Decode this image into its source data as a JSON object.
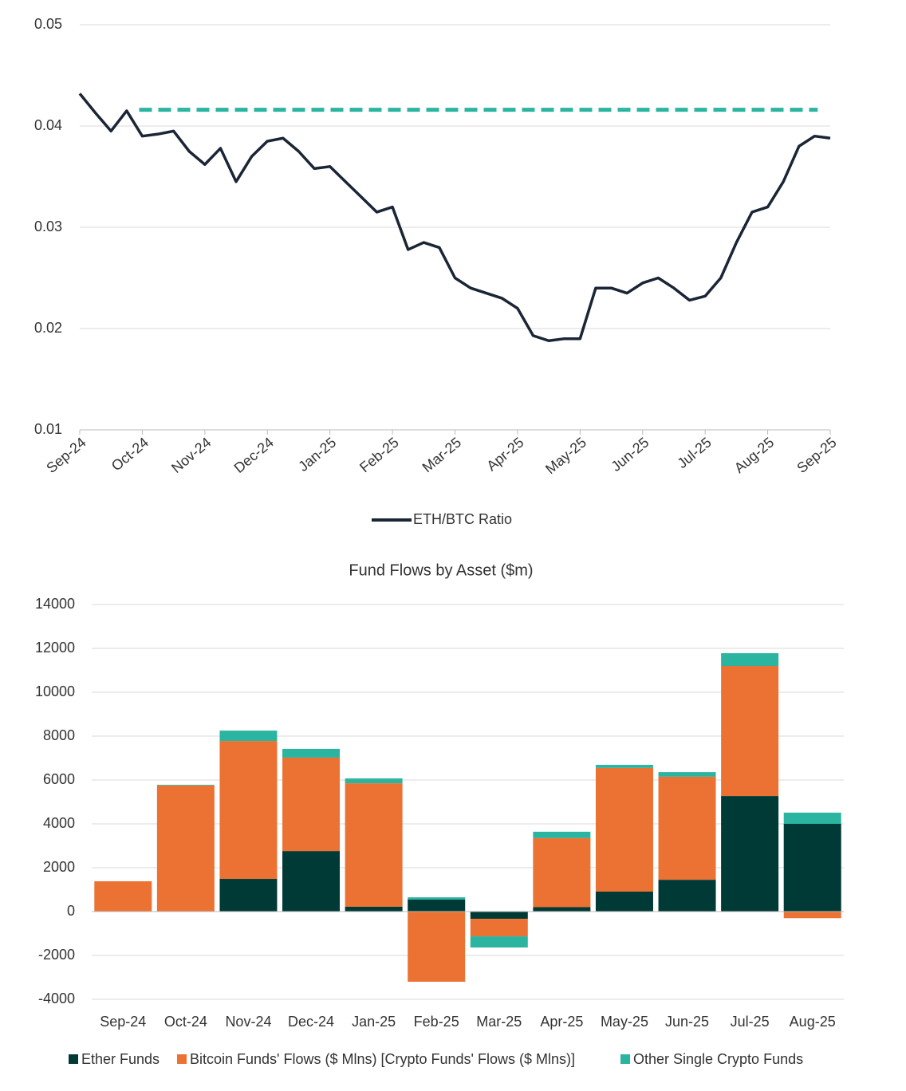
{
  "chart_data": [
    {
      "type": "line",
      "x": [
        0,
        0.25,
        0.5,
        0.75,
        1,
        1.25,
        1.5,
        1.75,
        2,
        2.25,
        2.5,
        2.75,
        3,
        3.25,
        3.5,
        3.75,
        4,
        4.25,
        4.5,
        4.75,
        5,
        5.25,
        5.5,
        5.75,
        6,
        6.25,
        6.5,
        6.75,
        7,
        7.25,
        7.5,
        7.75,
        8,
        8.25,
        8.5,
        8.75,
        9,
        9.25,
        9.5,
        9.75,
        10,
        10.25,
        10.5,
        10.75,
        11,
        11.25,
        11.5,
        11.75,
        12
      ],
      "series": [
        {
          "name": "ETH/BTC Ratio",
          "color": "#1a2535",
          "values": [
            0.0432,
            0.0413,
            0.0395,
            0.0415,
            0.039,
            0.0392,
            0.0395,
            0.0375,
            0.0362,
            0.0378,
            0.0345,
            0.037,
            0.0385,
            0.0388,
            0.0375,
            0.0358,
            0.036,
            0.0345,
            0.033,
            0.0315,
            0.032,
            0.0278,
            0.0285,
            0.028,
            0.025,
            0.024,
            0.0235,
            0.023,
            0.022,
            0.0193,
            0.0188,
            0.019,
            0.019,
            0.024,
            0.024,
            0.0235,
            0.0245,
            0.025,
            0.024,
            0.0228,
            0.0232,
            0.025,
            0.0285,
            0.0315,
            0.032,
            0.0345,
            0.038,
            0.039,
            0.0388
          ]
        }
      ],
      "reference_line": {
        "y": 0.0416,
        "x": [
          0.95,
          11.8
        ],
        "color": "#2bb5a0"
      },
      "xlim": [
        0,
        12
      ],
      "xticks": [
        {
          "value": 0,
          "label": "Sep-24"
        },
        {
          "value": 1,
          "label": "Oct-24"
        },
        {
          "value": 2,
          "label": "Nov-24"
        },
        {
          "value": 3,
          "label": "Dec-24"
        },
        {
          "value": 4,
          "label": "Jan-25"
        },
        {
          "value": 5,
          "label": "Feb-25"
        },
        {
          "value": 6,
          "label": "Mar-25"
        },
        {
          "value": 7,
          "label": "Apr-25"
        },
        {
          "value": 8,
          "label": "May-25"
        },
        {
          "value": 9,
          "label": "Jun-25"
        },
        {
          "value": 10,
          "label": "Jul-25"
        },
        {
          "value": 11,
          "label": "Aug-25"
        },
        {
          "value": 12,
          "label": "Sep-25"
        }
      ],
      "ylim": [
        0.01,
        0.05
      ],
      "yticks": [
        0.01,
        0.02,
        0.03,
        0.04,
        0.05
      ],
      "grid": true
    },
    {
      "type": "stacked_bar",
      "title": "Fund Flows by Asset ($m)",
      "categories": [
        "Sep-24",
        "Oct-24",
        "Nov-24",
        "Dec-24",
        "Jan-25",
        "Feb-25",
        "Mar-25",
        "Apr-25",
        "May-25",
        "Jun-25",
        "Jul-25",
        "Aug-25"
      ],
      "series": [
        {
          "name": "Ether Funds",
          "color": "#003a36",
          "values": [
            0,
            0,
            1490,
            2760,
            220,
            550,
            -330,
            200,
            910,
            1450,
            5270,
            4000
          ]
        },
        {
          "name": "Bitcoin Funds' Flows ($ Mlns) [Crypto Funds' Flows ($ Mlns)]",
          "color": "#eb7233",
          "values": [
            1380,
            5750,
            6290,
            4260,
            5630,
            -3200,
            -800,
            3150,
            5640,
            4700,
            5930,
            -300
          ]
        },
        {
          "name": "Other Single Crypto Funds",
          "color": "#2bb5a0",
          "values": [
            0,
            30,
            470,
            400,
            220,
            100,
            -510,
            290,
            140,
            210,
            580,
            510
          ]
        }
      ],
      "ylim": [
        -4000,
        14000
      ],
      "yticks": [
        -4000,
        -2000,
        0,
        2000,
        4000,
        6000,
        8000,
        10000,
        12000,
        14000
      ],
      "grid": true
    }
  ]
}
